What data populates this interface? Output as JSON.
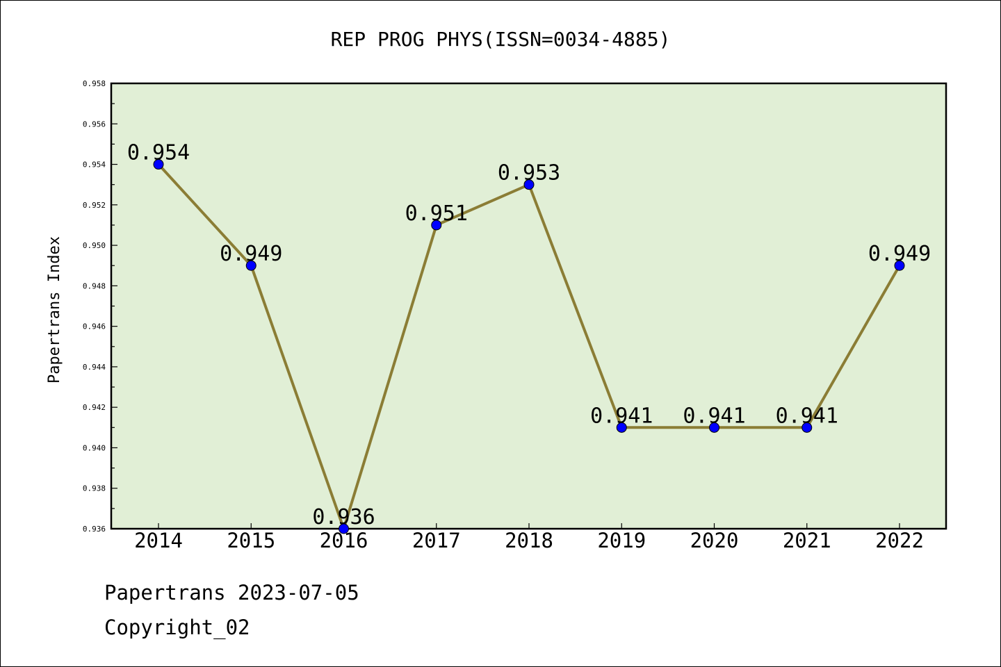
{
  "chart_data": {
    "type": "line",
    "title": "REP PROG PHYS(ISSN=0034-4885)",
    "xlabel": "",
    "ylabel": "Papertrans Index",
    "categories": [
      "2014",
      "2015",
      "2016",
      "2017",
      "2018",
      "2019",
      "2020",
      "2021",
      "2022"
    ],
    "values": [
      0.954,
      0.949,
      0.936,
      0.951,
      0.953,
      0.941,
      0.941,
      0.941,
      0.949
    ],
    "data_labels": [
      "0.954",
      "0.949",
      "0.936",
      "0.951",
      "0.953",
      "0.941",
      "0.941",
      "0.941",
      "0.949"
    ],
    "yticks": [
      "0.936",
      "0.938",
      "0.940",
      "0.942",
      "0.944",
      "0.946",
      "0.948",
      "0.950",
      "0.952",
      "0.954",
      "0.956",
      "0.958"
    ],
    "ylim": [
      0.936,
      0.958
    ],
    "grid": false,
    "colors": {
      "plot_background": "#e1efd6",
      "line": "#8b7d35",
      "marker": "#0000ff"
    }
  },
  "footer": {
    "date_line": "Papertrans 2023-07-05",
    "copyright_line": "Copyright_02"
  }
}
